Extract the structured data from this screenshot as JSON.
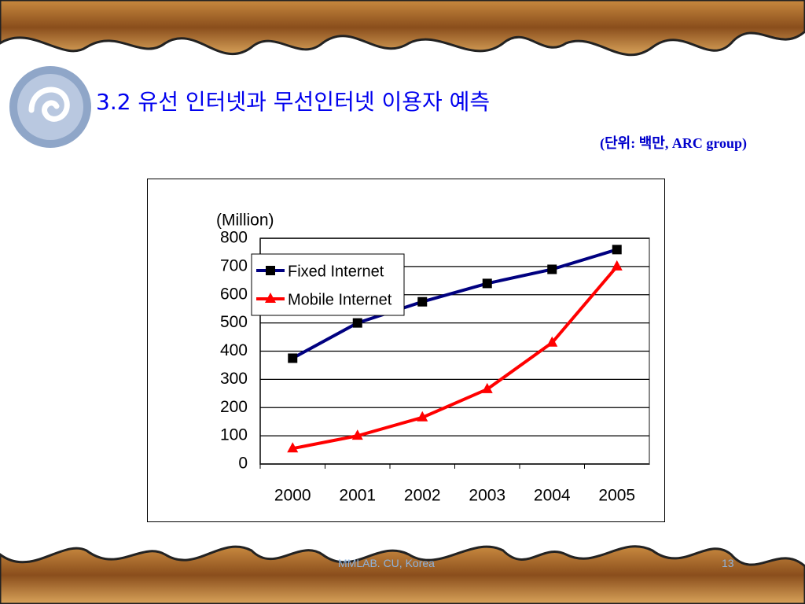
{
  "slide": {
    "title": "3.2 유선 인터넷과 무선인터넷 이용자 예측",
    "unit": "(단위: 백만, ARC group)",
    "footer": "MMLAB. CU, Korea",
    "page": "13"
  },
  "chart_data": {
    "type": "line",
    "y_label": "(Million)",
    "categories": [
      "2000",
      "2001",
      "2002",
      "2003",
      "2004",
      "2005"
    ],
    "series": [
      {
        "name": "Fixed Internet",
        "color": "#000080",
        "marker": "square",
        "values": [
          375,
          500,
          575,
          640,
          690,
          760
        ]
      },
      {
        "name": "Mobile Internet",
        "color": "#ff0000",
        "marker": "triangle",
        "values": [
          55,
          100,
          165,
          265,
          430,
          700
        ]
      }
    ],
    "ylim": [
      0,
      800
    ],
    "yticks": [
      0,
      100,
      200,
      300,
      400,
      500,
      600,
      700,
      800
    ],
    "grid": true,
    "legend": "upper left"
  }
}
